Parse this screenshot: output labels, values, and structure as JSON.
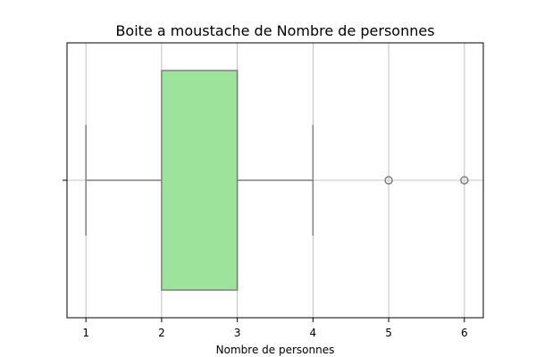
{
  "chart_data": {
    "type": "boxplot",
    "orientation": "horizontal",
    "title": "Boite a moustache de Nombre de personnes",
    "xlabel": "Nombre de personnes",
    "ylabel": "",
    "xlim": [
      0.75,
      6.25
    ],
    "xticks": [
      1,
      2,
      3,
      4,
      5,
      6
    ],
    "grid": true,
    "box": {
      "whisker_low": 1,
      "q1": 2,
      "median": 3,
      "q3": 3,
      "whisker_high": 4,
      "outliers": [
        5,
        6
      ]
    },
    "colors": {
      "box_fill": "#9de39b",
      "line": "#808080",
      "grid": "#b0b0b0",
      "frame": "#000000"
    }
  }
}
